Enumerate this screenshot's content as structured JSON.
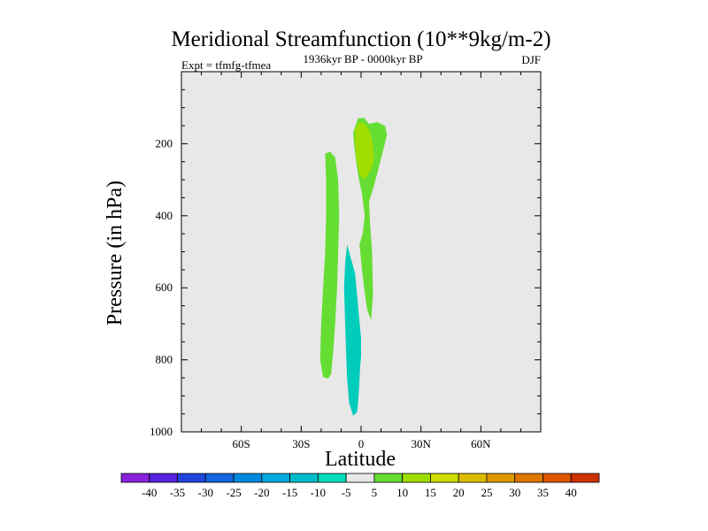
{
  "chart_data": {
    "type": "contour",
    "title": "Meridional Streamfunction (10**9kg/m-2)",
    "subtitle": "1936kyr BP - 0000kyr BP",
    "left_label": "Expt = tfmfg-tfmea",
    "right_label": "DJF",
    "xlabel": "Latitude",
    "ylabel": "Pressure (in hPa)",
    "xlim": [
      -90,
      90
    ],
    "ylim": [
      1000,
      0
    ],
    "x_ticks": [
      {
        "value": -60,
        "label": "60S"
      },
      {
        "value": -30,
        "label": "30S"
      },
      {
        "value": 0,
        "label": "0"
      },
      {
        "value": 30,
        "label": "30N"
      },
      {
        "value": 60,
        "label": "60N"
      }
    ],
    "y_ticks": [
      {
        "value": 200,
        "label": "200"
      },
      {
        "value": 400,
        "label": "400"
      },
      {
        "value": 600,
        "label": "600"
      },
      {
        "value": 800,
        "label": "800"
      },
      {
        "value": 1000,
        "label": "1000"
      }
    ],
    "background_color": "#e8e8e8",
    "regions": [
      {
        "name": "positive-band-south",
        "level": "5 to 10",
        "color": "#66dd33",
        "points": [
          [
            -18,
            228
          ],
          [
            -15.5,
            222
          ],
          [
            -13,
            238
          ],
          [
            -11.5,
            300
          ],
          [
            -11,
            400
          ],
          [
            -11.5,
            500
          ],
          [
            -12,
            600
          ],
          [
            -13,
            700
          ],
          [
            -14,
            780
          ],
          [
            -15,
            838
          ],
          [
            -16.5,
            852
          ],
          [
            -19,
            848
          ],
          [
            -20.5,
            800
          ],
          [
            -20,
            700
          ],
          [
            -19,
            600
          ],
          [
            -18,
            500
          ],
          [
            -17.5,
            400
          ],
          [
            -17.5,
            300
          ]
        ]
      },
      {
        "name": "positive-band-equator",
        "level": "5 to 10",
        "color": "#66dd33",
        "points": [
          [
            -4,
            170
          ],
          [
            -1.5,
            130
          ],
          [
            1.5,
            128
          ],
          [
            4,
            145
          ],
          [
            8,
            140
          ],
          [
            12,
            150
          ],
          [
            13,
            175
          ],
          [
            11,
            220
          ],
          [
            8,
            285
          ],
          [
            5.5,
            335
          ],
          [
            4,
            360
          ],
          [
            4.5,
            420
          ],
          [
            5.5,
            500
          ],
          [
            6,
            620
          ],
          [
            5,
            690
          ],
          [
            3,
            660
          ],
          [
            1.5,
            600
          ],
          [
            0.5,
            550
          ],
          [
            -0.8,
            480
          ],
          [
            0.8,
            450
          ],
          [
            1.8,
            400
          ],
          [
            0.5,
            340
          ],
          [
            -1,
            300
          ],
          [
            -2.5,
            250
          ],
          [
            -3.5,
            200
          ]
        ]
      },
      {
        "name": "positive-core",
        "level": "10 to 15",
        "color": "#a0dd00",
        "points": [
          [
            -3,
            160
          ],
          [
            -1,
            140
          ],
          [
            2,
            145
          ],
          [
            4.5,
            165
          ],
          [
            6,
            205
          ],
          [
            6.5,
            245
          ],
          [
            5,
            270
          ],
          [
            3,
            290
          ],
          [
            1,
            300
          ],
          [
            -1,
            280
          ],
          [
            -2.5,
            240
          ],
          [
            -3,
            200
          ]
        ]
      },
      {
        "name": "negative-band",
        "level": "-10 to -5",
        "color": "#00ccbb",
        "points": [
          [
            -7,
            480
          ],
          [
            -5.5,
            510
          ],
          [
            -3,
            560
          ],
          [
            -2,
            620
          ],
          [
            -1,
            680
          ],
          [
            0,
            740
          ],
          [
            0,
            790
          ],
          [
            -0.5,
            820
          ],
          [
            -1,
            880
          ],
          [
            -1.5,
            920
          ],
          [
            -2,
            945
          ],
          [
            -4,
            955
          ],
          [
            -6,
            920
          ],
          [
            -7,
            850
          ],
          [
            -7.5,
            780
          ],
          [
            -8,
            700
          ],
          [
            -8.5,
            600
          ],
          [
            -8,
            530
          ]
        ]
      }
    ],
    "colorbar": {
      "levels": [
        "-40",
        "-35",
        "-30",
        "-25",
        "-20",
        "-15",
        "-10",
        "-5",
        "5",
        "10",
        "15",
        "20",
        "25",
        "30",
        "35",
        "40"
      ],
      "colors": [
        "#8822dd",
        "#5522dd",
        "#2244dd",
        "#1166dd",
        "#0088dd",
        "#00aadd",
        "#00bbcc",
        "#00ddbb",
        "#e8e8e8",
        "#66dd33",
        "#a0dd00",
        "#ccdd00",
        "#ddbb00",
        "#dd9900",
        "#dd7700",
        "#dd5500",
        "#cc3300"
      ]
    }
  }
}
